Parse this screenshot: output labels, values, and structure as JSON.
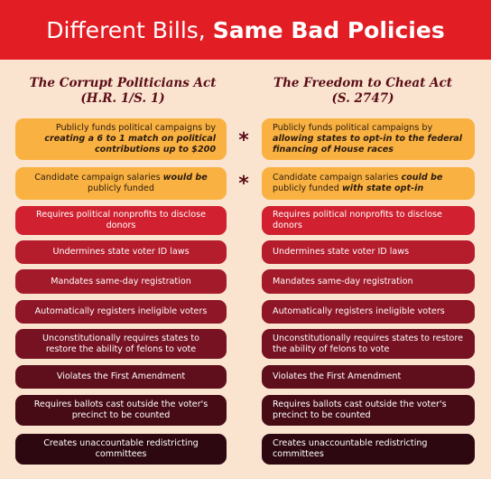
{
  "title": {
    "part1": "Different Bills,",
    "part2": "Same Bad Policies"
  },
  "columns": {
    "left": {
      "name": "The Corrupt Politicians Act",
      "bill": "(H.R. 1/S. 1)"
    },
    "right": {
      "name": "The Freedom to Cheat Act",
      "bill": "(S. 2747)"
    }
  },
  "star_symbol": "*",
  "rows": [
    {
      "left": {
        "a": "Publicly funds political campaigns by ",
        "b": "creating a 6 to 1 match on political contributions up to $200"
      },
      "right": {
        "a": "Publicly funds political campaigns by ",
        "b": "allowing states to opt-in to the federal financing of House races"
      },
      "color": "#f9b242"
    },
    {
      "left": {
        "a": "Candidate campaign salaries ",
        "b": "would be",
        "c": " publicly funded"
      },
      "right": {
        "a": "Candidate campaign salaries ",
        "b": "could be",
        "c": " publicly funded ",
        "d": "with state opt-in"
      },
      "color": "#f9b242"
    },
    {
      "left": "Requires political nonprofits to disclose donors",
      "right": "Requires political nonprofits to disclose donors",
      "color": "#d1202f"
    },
    {
      "left": "Undermines state voter ID laws",
      "right": "Undermines state voter ID laws",
      "color": "#b51c2c"
    },
    {
      "left": "Mandates same-day registration",
      "right": "Mandates same-day registration",
      "color": "#a31a2a"
    },
    {
      "left": "Automatically registers ineligible voters",
      "right": "Automatically registers ineligible voters",
      "color": "#8e1626"
    },
    {
      "left": "Unconstitutionally requires states to restore the ability of felons to vote",
      "right": "Unconstitutionally requires states to restore the ability of felons to vote",
      "color": "#761222"
    },
    {
      "left": "Violates the First Amendment",
      "right": "Violates the First Amendment",
      "color": "#5f0e1c"
    },
    {
      "left": "Requires ballots cast outside the voter's precinct to be counted",
      "right": "Requires ballots cast outside the voter's precinct to be counted",
      "color": "#470b16"
    },
    {
      "left": "Creates unaccountable redistricting committees",
      "right": "Creates unaccountable redistricting committees",
      "color": "#2e0810"
    }
  ]
}
